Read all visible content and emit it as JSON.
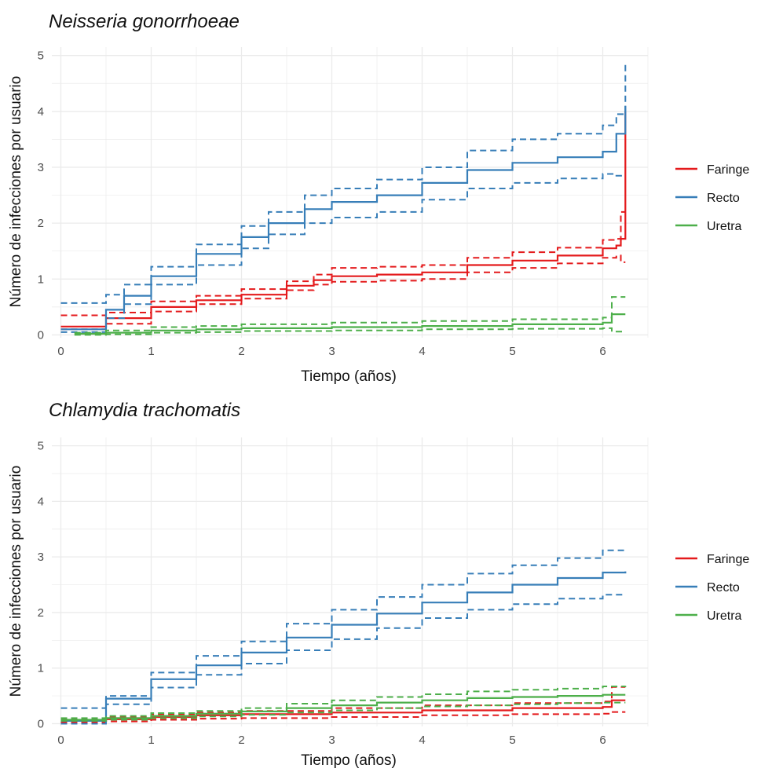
{
  "chart_data": [
    {
      "type": "line",
      "title": "Neisseria gonorrhoeae",
      "xlabel": "Tiempo (años)",
      "ylabel": "Número de infecciones por usuario",
      "xlim": [
        -0.1,
        6.5
      ],
      "ylim": [
        -0.05,
        5.15
      ],
      "xticks": [
        0,
        1,
        2,
        3,
        4,
        5,
        6
      ],
      "yticks": [
        0,
        1,
        2,
        3,
        4,
        5
      ],
      "grid": true,
      "legend": "right",
      "series": [
        {
          "name": "Faringe",
          "color": "#e41a1c",
          "x": [
            0,
            0.5,
            1,
            1.5,
            2,
            2.5,
            2.8,
            3,
            3.5,
            4,
            4.5,
            5,
            5.5,
            6,
            6.15,
            6.2,
            6.25
          ],
          "values": [
            0.15,
            0.3,
            0.5,
            0.62,
            0.72,
            0.88,
            0.98,
            1.05,
            1.08,
            1.12,
            1.25,
            1.33,
            1.42,
            1.55,
            1.6,
            1.72,
            4.0
          ],
          "lower": [
            0.1,
            0.2,
            0.42,
            0.55,
            0.65,
            0.8,
            0.9,
            0.95,
            0.97,
            1.0,
            1.12,
            1.2,
            1.28,
            1.38,
            1.42,
            1.3,
            1.3
          ],
          "upper": [
            0.35,
            0.4,
            0.6,
            0.7,
            0.82,
            0.96,
            1.08,
            1.2,
            1.22,
            1.25,
            1.38,
            1.48,
            1.56,
            1.7,
            1.72,
            2.2,
            2.2
          ]
        },
        {
          "name": "Recto",
          "color": "#377eb8",
          "x": [
            0,
            0.5,
            0.7,
            1,
            1.5,
            2,
            2.3,
            2.7,
            3,
            3.5,
            4,
            4.5,
            5,
            5.5,
            6,
            6.15,
            6.25
          ],
          "values": [
            0.1,
            0.45,
            0.7,
            1.05,
            1.45,
            1.75,
            2.0,
            2.25,
            2.38,
            2.5,
            2.72,
            2.95,
            3.08,
            3.18,
            3.28,
            3.6,
            4.1
          ],
          "lower": [
            0.05,
            0.3,
            0.55,
            0.9,
            1.25,
            1.55,
            1.8,
            2.0,
            2.1,
            2.2,
            2.42,
            2.62,
            2.72,
            2.8,
            2.88,
            2.85,
            2.85
          ],
          "upper": [
            0.57,
            0.72,
            0.9,
            1.22,
            1.62,
            1.95,
            2.2,
            2.5,
            2.62,
            2.78,
            3.0,
            3.3,
            3.5,
            3.6,
            3.75,
            3.95,
            4.9
          ]
        },
        {
          "name": "Uretra",
          "color": "#4daf4a",
          "x": [
            0.15,
            0.5,
            1,
            1.5,
            2,
            3,
            4,
            5,
            6,
            6.1,
            6.25
          ],
          "values": [
            0.02,
            0.04,
            0.08,
            0.1,
            0.12,
            0.14,
            0.16,
            0.19,
            0.22,
            0.37,
            0.37
          ],
          "lower": [
            0.0,
            0.01,
            0.04,
            0.05,
            0.07,
            0.08,
            0.1,
            0.11,
            0.12,
            0.06,
            0.06
          ],
          "upper": [
            0.04,
            0.08,
            0.14,
            0.16,
            0.19,
            0.22,
            0.25,
            0.28,
            0.31,
            0.68,
            0.68
          ]
        }
      ]
    },
    {
      "type": "line",
      "title": "Chlamydia trachomatis",
      "xlabel": "Tiempo (años)",
      "ylabel": "Número de infecciones por usuario",
      "xlim": [
        -0.1,
        6.5
      ],
      "ylim": [
        -0.05,
        5.15
      ],
      "xticks": [
        0,
        1,
        2,
        3,
        4,
        5,
        6
      ],
      "yticks": [
        0,
        1,
        2,
        3,
        4,
        5
      ],
      "grid": true,
      "legend": "right",
      "series": [
        {
          "name": "Faringe",
          "color": "#e41a1c",
          "x": [
            0,
            0.5,
            1,
            1.5,
            2,
            3,
            4,
            5,
            6,
            6.1,
            6.25
          ],
          "values": [
            0.05,
            0.08,
            0.12,
            0.15,
            0.17,
            0.2,
            0.24,
            0.28,
            0.3,
            0.42,
            0.42
          ],
          "lower": [
            0.02,
            0.04,
            0.07,
            0.09,
            0.1,
            0.12,
            0.15,
            0.17,
            0.18,
            0.21,
            0.21
          ],
          "upper": [
            0.08,
            0.12,
            0.17,
            0.2,
            0.23,
            0.28,
            0.33,
            0.37,
            0.4,
            0.66,
            0.66
          ]
        },
        {
          "name": "Recto",
          "color": "#377eb8",
          "x": [
            0,
            0.5,
            1,
            1.5,
            2,
            2.5,
            3,
            3.5,
            4,
            4.5,
            5,
            5.5,
            6,
            6.25
          ],
          "values": [
            0.05,
            0.45,
            0.8,
            1.05,
            1.28,
            1.55,
            1.78,
            1.98,
            2.18,
            2.36,
            2.5,
            2.62,
            2.72,
            2.74
          ],
          "lower": [
            0.0,
            0.35,
            0.65,
            0.88,
            1.08,
            1.32,
            1.52,
            1.72,
            1.9,
            2.05,
            2.15,
            2.25,
            2.32,
            2.32
          ],
          "upper": [
            0.28,
            0.5,
            0.92,
            1.22,
            1.48,
            1.8,
            2.05,
            2.28,
            2.5,
            2.7,
            2.85,
            2.98,
            3.12,
            3.15
          ]
        },
        {
          "name": "Uretra",
          "color": "#4daf4a",
          "x": [
            0,
            0.5,
            1,
            1.5,
            2,
            2.5,
            3,
            3.5,
            4,
            4.5,
            5,
            5.5,
            6,
            6.25
          ],
          "values": [
            0.07,
            0.1,
            0.14,
            0.18,
            0.22,
            0.28,
            0.33,
            0.38,
            0.42,
            0.46,
            0.48,
            0.5,
            0.52,
            0.52
          ],
          "lower": [
            0.05,
            0.07,
            0.1,
            0.13,
            0.16,
            0.2,
            0.24,
            0.28,
            0.31,
            0.33,
            0.35,
            0.37,
            0.38,
            0.38
          ],
          "upper": [
            0.1,
            0.14,
            0.19,
            0.23,
            0.28,
            0.36,
            0.42,
            0.48,
            0.53,
            0.58,
            0.61,
            0.63,
            0.67,
            0.68
          ]
        }
      ]
    }
  ]
}
